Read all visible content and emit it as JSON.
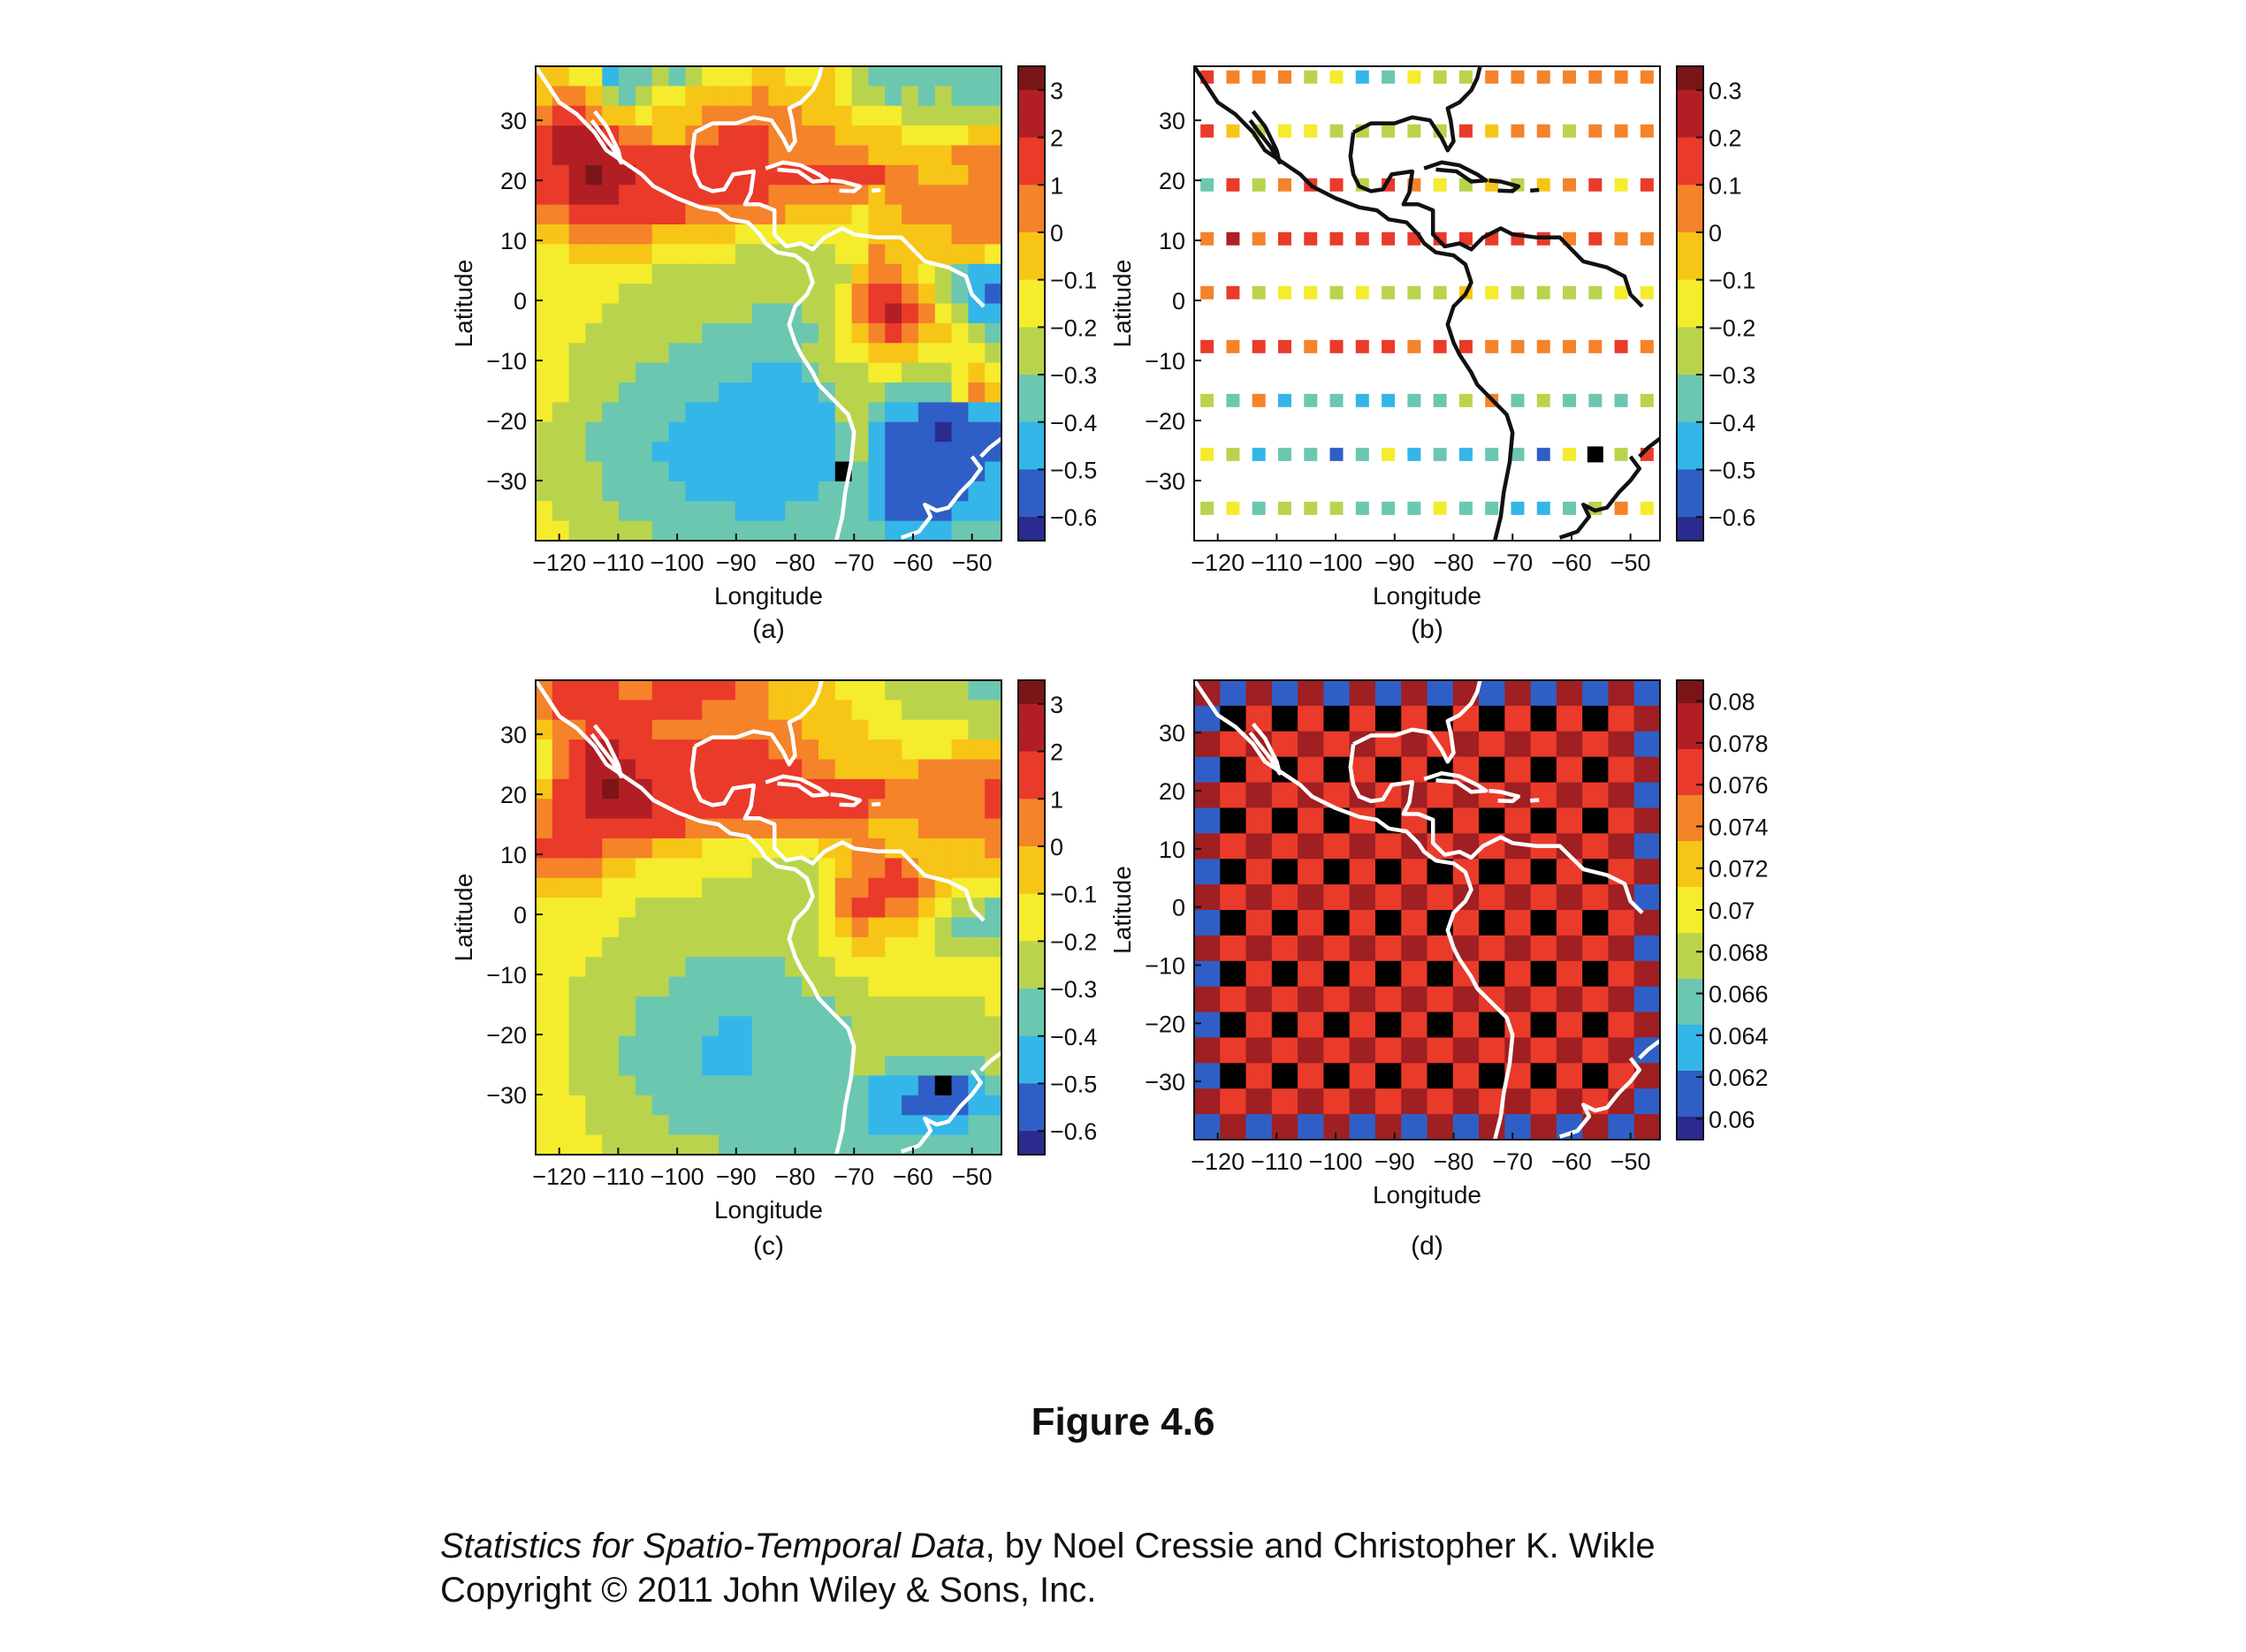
{
  "figure": {
    "title": "Figure 4.6",
    "caption": {
      "book_title": "Statistics for Spatio-Temporal Data",
      "authors": ", by Noel Cressie and Christopher K. Wikle",
      "copyright": "Copyright © 2011 John Wiley & Sons, Inc."
    }
  },
  "colors": {
    "colormap": [
      "#2a2a8f",
      "#2f5fc6",
      "#34b6e8",
      "#6cc7b0",
      "#b9d44c",
      "#f4ec2c",
      "#f7c517",
      "#f4832a",
      "#ea3a2a",
      "#b11f24",
      "#7a1518"
    ],
    "coastline_light": "#ffffff",
    "coastline_dark": "#111111",
    "missing": "#000000"
  },
  "chart_data": [
    {
      "panel": "(a)",
      "type": "heatmap",
      "xlabel": "Longitude",
      "ylabel": "Latitude",
      "xticks": [
        "−120",
        "−110",
        "−100",
        "−90",
        "−80",
        "−70",
        "−60",
        "−50"
      ],
      "yticks": [
        "30",
        "20",
        "10",
        "0",
        "−10",
        "−20",
        "−30"
      ],
      "xlim": [
        -124,
        -45
      ],
      "ylim": [
        -40,
        39
      ],
      "colorbar_ticks": [
        "3",
        "2",
        "1",
        "0",
        "−0.1",
        "−0.2",
        "−0.3",
        "−0.4",
        "−0.5",
        "−0.6"
      ],
      "grid": false,
      "coastline": "white",
      "field": "smoothed anomaly field",
      "rows": [
        "GGFFCDDEDEFFFGGFFGFEDDDDDDDD",
        "GHHGEDEFFGGGGHGGGGFEEDEDEDDD",
        "HIIHGGFGGGHHHHHHGGGFFFEEEEEE",
        "IJJJIHHGGHHIIIHHHHGGGGFFFFGG",
        "IJJJJIIIIIIIIIHHHHHHGGGGGHHH",
        "IIJKJJIIIIIIIIIIIIIIIHHGGGHH",
        "IIJJJIIIIIIIIIHHHHHHGHHHHHHH",
        "HHIIIIIIIHHHHHHGGGGFGGHHHHHH",
        "GGHHHHHGGGGGFFFFFFFFGGGGGHHH",
        "FFGGGGGFFFFFEEEEEEFFHGGGGGGF",
        "FFFFFFFEEEEEEEEEEEEGHHGFEDCC",
        "FFFFFEEEEEEEEEEEEEFHIIHGEDCB",
        "FFFFEEEEEEEEEDDDEEFHIJIHFECC",
        "FFFEEEEEEEDDDDDDDEFGHIHGGFED",
        "FFEEEEEEDDDDDDDDEEFFGGGFFFFE",
        "FFEEEEDDDDDDDCCCDEEEFFEEEFGF",
        "FFEEEDDDDDDCCCCCCDEEEDDDDFHG",
        "FEEEDDDDDCCCCCCCCCEEDCCBBBCC",
        "EEEDDDDDCCCCCCCCCCDECBBBABBB",
        "EEEDDDDCCCCCCCCCCCDECBBBBBBB",
        "EEEEDDDDCCCCCCCCCCDDCBBBBBBC",
        "EEEEDDDDDCCCCCCCCDDDCBBBBBCC",
        "FEEEEDDDDDDDCCCDDDDDCBBBBCCC",
        "FFEEEEEDDDDDDDDDDDDDDCCCCDDD"
      ],
      "missing_cells": [
        [
          20,
          18
        ]
      ]
    },
    {
      "panel": "(b)",
      "type": "heatmap",
      "xlabel": "Longitude",
      "ylabel": "Latitude",
      "xticks": [
        "−120",
        "−110",
        "−100",
        "−90",
        "−80",
        "−70",
        "−60",
        "−50"
      ],
      "yticks": [
        "30",
        "20",
        "10",
        "0",
        "−10",
        "−20",
        "−30"
      ],
      "xlim": [
        -124,
        -45
      ],
      "ylim": [
        -40,
        39
      ],
      "colorbar_ticks": [
        "0.3",
        "0.2",
        "0.1",
        "0",
        "−0.1",
        "−0.2",
        "−0.3",
        "−0.4",
        "−0.5",
        "−0.6"
      ],
      "grid": false,
      "coastline": "black",
      "field": "coefficients on a coarse sparse grid",
      "rows": [
        "IHHHEFCDFEEHHHHHHH",
        "IGEFFEEEEEIGHHEHHH",
        "DIEHIIEIHFEGEGHIFI",
        "HJHIIIIIIIIIIIHIHH",
        "HIEFFEFEEEGFEEEEFF",
        "IHIIHIIIHIIHHHHHIH",
        "EDHCDDCCDDEHDEDDDE",
        "FECDDBDFCDCDDBFDEI",
        "EFDEEEDDDFDDCCDEHF"
      ],
      "missing_cells": [
        [
          7,
          15
        ]
      ]
    },
    {
      "panel": "(c)",
      "type": "heatmap",
      "xlabel": "Longitude",
      "ylabel": "Latitude",
      "xticks": [
        "−120",
        "−110",
        "−100",
        "−90",
        "−80",
        "−70",
        "−60",
        "−50"
      ],
      "yticks": [
        "30",
        "20",
        "10",
        "0",
        "−10",
        "−20",
        "−30"
      ],
      "xlim": [
        -124,
        -45
      ],
      "ylim": [
        -40,
        39
      ],
      "colorbar_ticks": [
        "3",
        "2",
        "1",
        "0",
        "−0.1",
        "−0.2",
        "−0.3",
        "−0.4",
        "−0.5",
        "−0.6"
      ],
      "grid": false,
      "coastline": "white",
      "field": "smoothed predicted field",
      "rows": [
        "HIIIIHHIIIIIHHGGGGFFFEEEEEDD",
        "HIIIIIIIIIHHHHGGGGGFFFEEEEEE",
        "GHHIIIIHHHHHHHHHGGGGFFFFFFEE",
        "FHIJJIIIIIIIIIHHHGGGGGFFFGGG",
        "FHIJJJIIIIIIIIIIHHGGGGGHHHHH",
        "GIIJKJJIIIIIIIIIIIIIIHHHHHHI",
        "HIIJJJJIIIIIIIIIIIIIHHHHHHHI",
        "HIIIIIIIIHHHHHHHHHHHGGGHHHHH",
        "IIIIHHHGGGFFFFFFFGGHHGGGGGGH",
        "HHHHGGFFFFFFFEEEEFGHHIHGGGGG",
        "GGGGFFFFFFEEEEEEEFHHIIIHGFFF",
        "FFFFFFEEEEEEEEEEEFHIIHHGFEED",
        "FFFFFEEEEEEEEEEEEFGHGGGFEDDD",
        "FFFFEEEEEEEEEEEEEFFGGFFFEEEE",
        "FFFEEEEEEDDDDDDEEEFFFFFFFFFF",
        "FFEEEEEEDDDDDDDDEEEEFFFFFFFF",
        "FFEEEEDDDDDDDDDDDDEEEEEEEEEF",
        "FFEEEEDDDDDCCDDDDDDEEEEEEEEE",
        "FFEEEDDDDDCCCDDDDDDEEEEEEEEE",
        "FFEEEDDDDDCCCDDDDDDEEDDDDDDE",
        "FFEEEEDDDDDDDDDDDDDDCCCBBBCD",
        "FFFEEEEDDDDDDDDDDDDDCCBBBBCC",
        "FFFEEEEEDDDDDDDDDDDDCCCCCCDD",
        "FFFFEEEEEEEDDDDDDDDDDDDDDDDD"
      ],
      "missing_cells": [
        [
          20,
          24
        ]
      ]
    },
    {
      "panel": "(d)",
      "type": "heatmap",
      "xlabel": "Longitude",
      "ylabel": "Latitude",
      "xticks": [
        "−120",
        "−110",
        "−100",
        "−90",
        "−80",
        "−70",
        "−60",
        "−50"
      ],
      "yticks": [
        "30",
        "20",
        "10",
        "0",
        "−10",
        "−20",
        "−30"
      ],
      "xlim": [
        -124,
        -45
      ],
      "ylim": [
        -40,
        39
      ],
      "colorbar_ticks": [
        "0.08",
        "0.078",
        "0.076",
        "0.074",
        "0.072",
        "0.07",
        "0.068",
        "0.066",
        "0.064",
        "0.062",
        "0.06"
      ],
      "grid": false,
      "coastline": "white",
      "field": "prediction standard error, checkerboard pattern"
    }
  ]
}
